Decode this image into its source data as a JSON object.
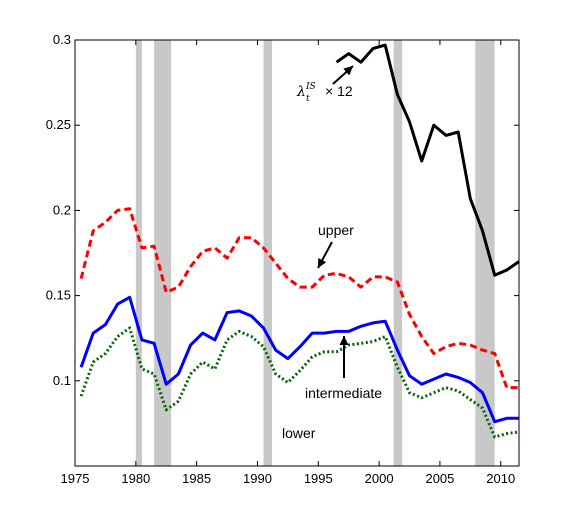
{
  "chart_data": {
    "type": "line",
    "xlim": [
      1975,
      2011.5
    ],
    "ylim": [
      0.05,
      0.3
    ],
    "x_ticks": [
      1975,
      1980,
      1985,
      1990,
      1995,
      2000,
      2005,
      2010
    ],
    "y_ticks": [
      0.1,
      0.15,
      0.2,
      0.25,
      0.3
    ],
    "y_tick_labels": [
      "0.1",
      "0.15",
      "0.2",
      "0.25",
      "0.3"
    ],
    "grid": false,
    "recession_bands": [
      [
        1980.0,
        1980.5
      ],
      [
        1981.5,
        1982.9
      ],
      [
        1990.5,
        1991.2
      ],
      [
        2001.2,
        2001.9
      ],
      [
        2007.9,
        2009.5
      ]
    ],
    "band_color": "#c8c8c8",
    "series": [
      {
        "key": "upper",
        "color": "#ff0000",
        "style": "dashed",
        "x": [
          1975.5,
          1976.5,
          1977.5,
          1978.5,
          1979.5,
          1980.5,
          1981.5,
          1982.5,
          1983.5,
          1984.5,
          1985.5,
          1986.5,
          1987.5,
          1988.5,
          1989.5,
          1990.5,
          1991.5,
          1992.5,
          1993.5,
          1994.5,
          1995.5,
          1996.5,
          1997.5,
          1998.5,
          1999.5,
          2000.5,
          2001.5,
          2002.5,
          2003.5,
          2004.5,
          2005.5,
          2006.5,
          2007.5,
          2008.5,
          2009.5,
          2010.5,
          2011.5
        ],
        "y": [
          0.16,
          0.188,
          0.193,
          0.2,
          0.201,
          0.178,
          0.179,
          0.152,
          0.155,
          0.167,
          0.176,
          0.178,
          0.172,
          0.184,
          0.184,
          0.178,
          0.169,
          0.16,
          0.155,
          0.155,
          0.162,
          0.163,
          0.161,
          0.155,
          0.161,
          0.161,
          0.158,
          0.139,
          0.126,
          0.116,
          0.12,
          0.122,
          0.121,
          0.118,
          0.116,
          0.096,
          0.096
        ]
      },
      {
        "key": "intermediate",
        "color": "#0000ff",
        "style": "solid",
        "x": [
          1975.5,
          1976.5,
          1977.5,
          1978.5,
          1979.5,
          1980.5,
          1981.5,
          1982.5,
          1983.5,
          1984.5,
          1985.5,
          1986.5,
          1987.5,
          1988.5,
          1989.5,
          1990.5,
          1991.5,
          1992.5,
          1993.5,
          1994.5,
          1995.5,
          1996.5,
          1997.5,
          1998.5,
          1999.5,
          2000.5,
          2001.5,
          2002.5,
          2003.5,
          2004.5,
          2005.5,
          2006.5,
          2007.5,
          2008.5,
          2009.5,
          2010.5,
          2011.5
        ],
        "y": [
          0.108,
          0.128,
          0.133,
          0.145,
          0.149,
          0.124,
          0.122,
          0.098,
          0.104,
          0.121,
          0.128,
          0.124,
          0.14,
          0.141,
          0.138,
          0.131,
          0.118,
          0.113,
          0.12,
          0.128,
          0.128,
          0.129,
          0.129,
          0.132,
          0.134,
          0.135,
          0.118,
          0.103,
          0.098,
          0.101,
          0.104,
          0.102,
          0.099,
          0.093,
          0.076,
          0.078,
          0.078
        ]
      },
      {
        "key": "lower",
        "color": "#006400",
        "style": "dotted",
        "x": [
          1975.5,
          1976.5,
          1977.5,
          1978.5,
          1979.5,
          1980.5,
          1981.5,
          1982.5,
          1983.5,
          1984.5,
          1985.5,
          1986.5,
          1987.5,
          1988.5,
          1989.5,
          1990.5,
          1991.5,
          1992.5,
          1993.5,
          1994.5,
          1995.5,
          1996.5,
          1997.5,
          1998.5,
          1999.5,
          2000.5,
          2001.5,
          2002.5,
          2003.5,
          2004.5,
          2005.5,
          2006.5,
          2007.5,
          2008.5,
          2009.5,
          2010.5,
          2011.5
        ],
        "y": [
          0.091,
          0.111,
          0.116,
          0.126,
          0.131,
          0.107,
          0.104,
          0.083,
          0.088,
          0.104,
          0.111,
          0.107,
          0.124,
          0.129,
          0.126,
          0.12,
          0.104,
          0.099,
          0.106,
          0.114,
          0.117,
          0.117,
          0.121,
          0.122,
          0.123,
          0.126,
          0.108,
          0.093,
          0.09,
          0.093,
          0.096,
          0.094,
          0.089,
          0.084,
          0.067,
          0.069,
          0.07
        ]
      },
      {
        "key": "lambda",
        "color": "#000000",
        "style": "solid",
        "x": [
          1996.5,
          1997.5,
          1998.5,
          1999.5,
          2000.5,
          2001.5,
          2002.5,
          2003.5,
          2004.5,
          2005.5,
          2006.5,
          2007.5,
          2008.5,
          2009.5,
          2010.5,
          2011.5
        ],
        "y": [
          0.287,
          0.292,
          0.287,
          0.295,
          0.297,
          0.268,
          0.252,
          0.229,
          0.25,
          0.244,
          0.246,
          0.207,
          0.188,
          0.162,
          0.165,
          0.17
        ]
      }
    ],
    "annotations": {
      "upper": "upper",
      "intermediate": "intermediate",
      "lower": "lower",
      "lambda_base": "λ",
      "lambda_sub": "t",
      "lambda_sup": "IS",
      "lambda_suffix": "× 12"
    }
  }
}
